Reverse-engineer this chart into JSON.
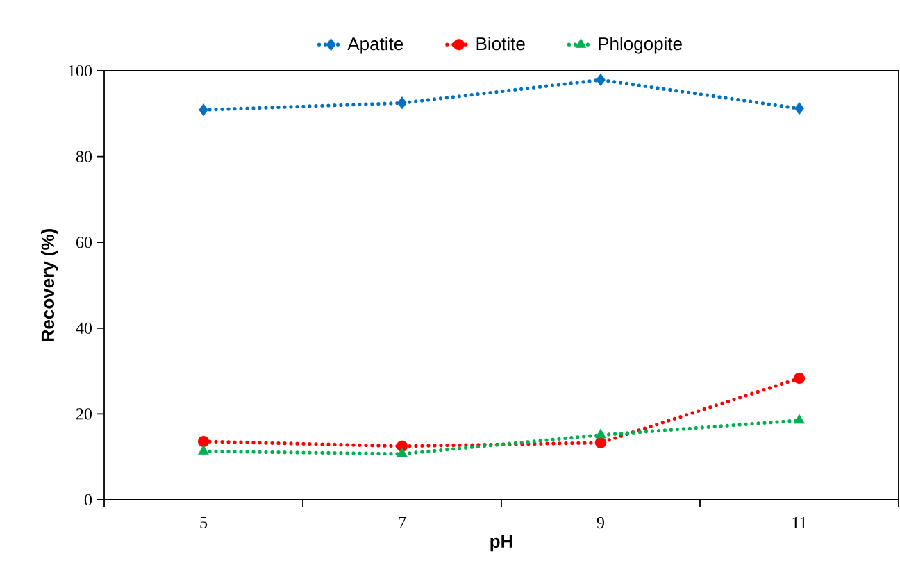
{
  "chart_data": {
    "type": "line",
    "xlabel": "pH",
    "ylabel": "Recovery (%)",
    "x": [
      5,
      7,
      9,
      11
    ],
    "series": [
      {
        "name": "Apatite",
        "color": "#0070c0",
        "marker": "diamond",
        "values": [
          90.9,
          92.5,
          97.9,
          91.2
        ]
      },
      {
        "name": "Biotite",
        "color": "#ff0000",
        "marker": "circle",
        "values": [
          13.6,
          12.5,
          13.3,
          28.3
        ]
      },
      {
        "name": "Phlogopite",
        "color": "#00b050",
        "marker": "triangle",
        "values": [
          11.3,
          10.7,
          15.1,
          18.5
        ]
      }
    ],
    "xlim": [
      4,
      12
    ],
    "xticks": [
      {
        "value": 4,
        "label": null
      },
      5,
      {
        "value": 6,
        "label": null
      },
      7,
      {
        "value": 8,
        "label": null
      },
      9,
      {
        "value": 10,
        "label": null
      },
      11,
      {
        "value": 12,
        "label": null
      }
    ],
    "ylim": [
      0,
      100
    ],
    "yticks": [
      0,
      20,
      40,
      60,
      80,
      100
    ],
    "grid": false,
    "legend": "top",
    "line_style": "dotted"
  }
}
